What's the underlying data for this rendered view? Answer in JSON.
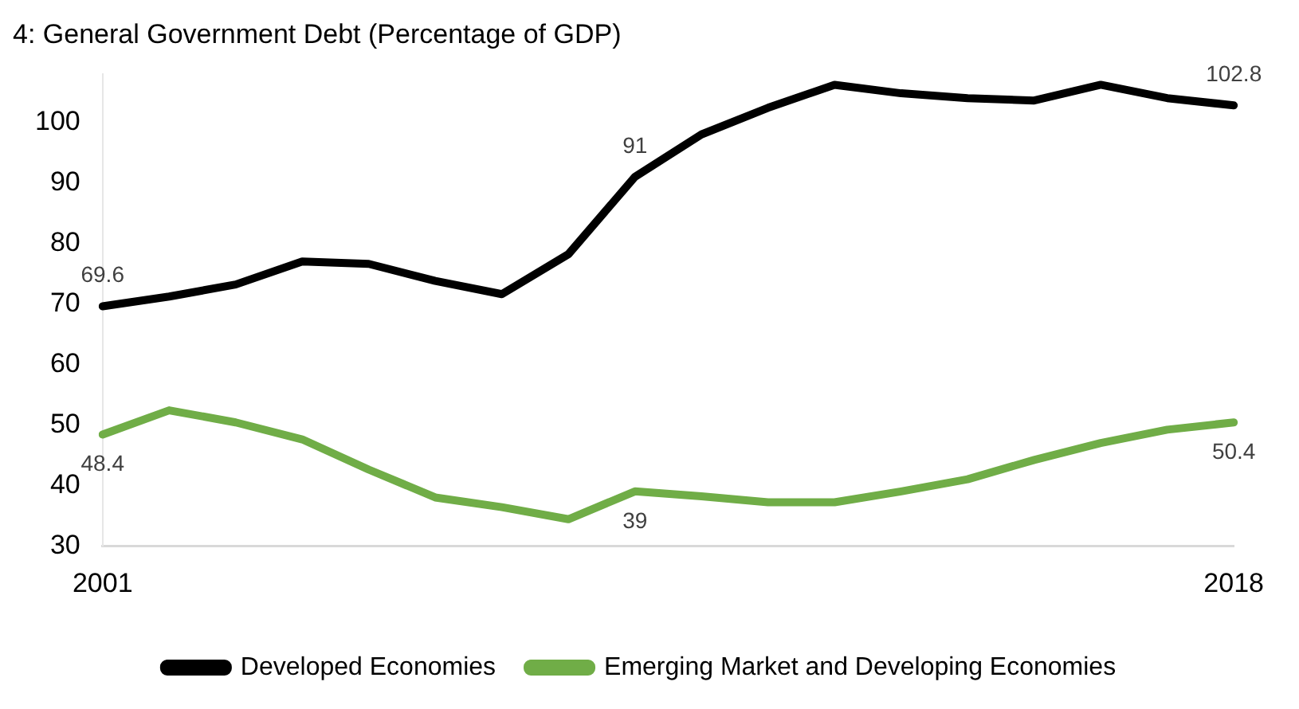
{
  "chart_data": {
    "type": "line",
    "title": "4: General Government Debt (Percentage of GDP)",
    "categories": [
      "2001",
      null,
      null,
      null,
      null,
      null,
      null,
      null,
      null,
      null,
      null,
      null,
      null,
      null,
      null,
      null,
      null,
      "2018"
    ],
    "series": [
      {
        "name": "Developed Economies",
        "color": "#000000",
        "values": [
          69.6,
          71.2,
          73.2,
          77.0,
          76.6,
          73.8,
          71.6,
          78.2,
          91,
          98.0,
          102.4,
          106.2,
          104.8,
          104.0,
          103.6,
          106.2,
          104.0,
          102.8
        ],
        "value_labels": [
          "69.6",
          null,
          null,
          null,
          null,
          null,
          null,
          null,
          "91",
          null,
          null,
          null,
          null,
          null,
          null,
          null,
          null,
          "102.8"
        ]
      },
      {
        "name": "Emerging Market and Developing Economies",
        "color": "#70ad47",
        "values": [
          48.4,
          52.4,
          50.4,
          47.6,
          42.6,
          38.0,
          36.4,
          34.4,
          39,
          38.2,
          37.2,
          37.2,
          39.0,
          41.0,
          44.2,
          47.0,
          49.2,
          50.4
        ],
        "value_labels": [
          "48.4",
          null,
          null,
          null,
          null,
          null,
          null,
          null,
          "39",
          null,
          null,
          null,
          null,
          null,
          null,
          null,
          null,
          "50.4"
        ]
      }
    ],
    "ylim": [
      30,
      108
    ],
    "yticks": [
      30,
      40,
      50,
      60,
      70,
      80,
      90,
      100
    ],
    "grid": false,
    "legend": "bottom",
    "marker": "none",
    "line_style": "solid"
  }
}
